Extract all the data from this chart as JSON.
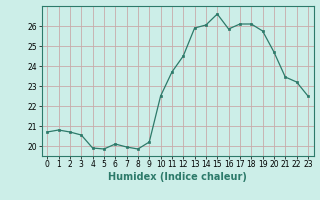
{
  "x": [
    0,
    1,
    2,
    3,
    4,
    5,
    6,
    7,
    8,
    9,
    10,
    11,
    12,
    13,
    14,
    15,
    16,
    17,
    18,
    19,
    20,
    21,
    22,
    23
  ],
  "y": [
    20.7,
    20.8,
    20.7,
    20.55,
    19.9,
    19.85,
    20.1,
    19.95,
    19.85,
    20.2,
    22.5,
    23.7,
    24.5,
    25.9,
    26.05,
    26.6,
    25.85,
    26.1,
    26.1,
    25.75,
    24.7,
    23.45,
    23.2,
    22.5
  ],
  "xlabel": "Humidex (Indice chaleur)",
  "ylabel": "",
  "ylim": [
    19.5,
    27.0
  ],
  "xlim": [
    -0.5,
    23.5
  ],
  "bg_color": "#cceee8",
  "grid_color": "#c8aaaa",
  "line_color": "#2d7a6a",
  "marker_color": "#2d7a6a",
  "yticks": [
    20,
    21,
    22,
    23,
    24,
    25,
    26
  ],
  "xticks": [
    0,
    1,
    2,
    3,
    4,
    5,
    6,
    7,
    8,
    9,
    10,
    11,
    12,
    13,
    14,
    15,
    16,
    17,
    18,
    19,
    20,
    21,
    22,
    23
  ],
  "xlabel_fontsize": 7,
  "tick_fontsize": 5.5
}
